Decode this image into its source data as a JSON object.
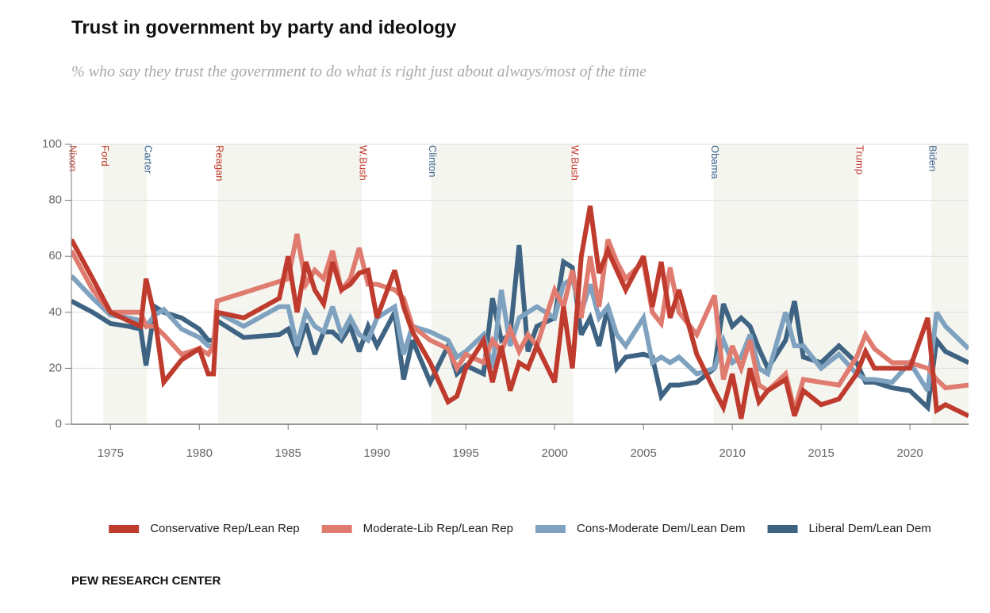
{
  "chart_data": {
    "type": "line",
    "title": "Trust in government by party and ideology",
    "subtitle": "% who say they trust the government to do what is right just about always/most of the time",
    "source": "PEW RESEARCH CENTER",
    "xlim": [
      1972.8,
      2023.3
    ],
    "xticks": [
      1975,
      1980,
      1985,
      1990,
      1995,
      2000,
      2005,
      2010,
      2015,
      2020
    ],
    "ylim": [
      0,
      100
    ],
    "yticks": [
      0,
      20,
      40,
      60,
      80,
      100
    ],
    "grid": true,
    "legend": "bottom",
    "periods": [
      {
        "label": "Nixon",
        "start": 1972.8,
        "color": "#c0392b",
        "shaded": false
      },
      {
        "label": "Ford",
        "start": 1974.6,
        "color": "#c0392b",
        "shaded": true
      },
      {
        "label": "Carter",
        "start": 1977.05,
        "color": "#3d6590",
        "shaded": false
      },
      {
        "label": "Reagan",
        "start": 1981.05,
        "color": "#c0392b",
        "shaded": true
      },
      {
        "label": "W.Bush",
        "start": 1989.15,
        "color": "#c0392b",
        "shaded": false
      },
      {
        "label": "Clinton",
        "start": 1993.05,
        "color": "#3d6590",
        "shaded": true
      },
      {
        "label": "W.Bush",
        "start": 2001.05,
        "color": "#c0392b",
        "shaded": false
      },
      {
        "label": "Obama",
        "start": 2008.95,
        "color": "#3d6590",
        "shaded": true
      },
      {
        "label": "Trump",
        "start": 2017.1,
        "color": "#c0392b",
        "shaded": false
      },
      {
        "label": "Biden",
        "start": 2021.2,
        "color": "#3d6590",
        "shaded": true
      }
    ],
    "x": [
      1972.8,
      1974,
      1975,
      1976,
      1976.7,
      1977,
      1977.5,
      1978,
      1979,
      1980,
      1980.5,
      1980.8,
      1981,
      1982.5,
      1984.5,
      1985,
      1985.5,
      1986,
      1986.5,
      1987,
      1987.5,
      1988,
      1988.5,
      1989,
      1989.5,
      1990,
      1991,
      1991.5,
      1992,
      1993,
      1994,
      1994.5,
      1995,
      1996,
      1996.5,
      1997,
      1997.5,
      1998,
      1998.5,
      1999,
      2000,
      2000.5,
      2001,
      2001.5,
      2002,
      2002.5,
      2003,
      2003.5,
      2004,
      2005,
      2005.5,
      2006,
      2006.5,
      2007,
      2008,
      2009,
      2009.5,
      2010,
      2010.5,
      2011,
      2011.5,
      2012,
      2013,
      2013.5,
      2014,
      2015,
      2016,
      2017,
      2017.5,
      2018,
      2019,
      2020,
      2021,
      2021.5,
      2022,
      2023.3
    ],
    "series": [
      {
        "name": "Conservative Rep/Lean Rep",
        "color": "#bf3b2d",
        "values": [
          66,
          52,
          40,
          37,
          35,
          52,
          38,
          15,
          23,
          27,
          18,
          18,
          40,
          38,
          45,
          60,
          40,
          58,
          48,
          43,
          58,
          48,
          50,
          54,
          55,
          38,
          55,
          42,
          33,
          22,
          8,
          10,
          20,
          30,
          15,
          28,
          12,
          22,
          20,
          28,
          15,
          42,
          20,
          60,
          78,
          54,
          62,
          55,
          48,
          60,
          42,
          58,
          38,
          48,
          25,
          12,
          6,
          18,
          2,
          20,
          8,
          12,
          16,
          3,
          12,
          7,
          9,
          18,
          26,
          20,
          20,
          20,
          38,
          5,
          7,
          3
        ]
      },
      {
        "name": "Moderate-Lib Rep/Lean Rep",
        "color": "#e07b70",
        "values": [
          62,
          48,
          40,
          40,
          40,
          35,
          35,
          32,
          25,
          27,
          25,
          28,
          44,
          47,
          51,
          52,
          68,
          50,
          55,
          52,
          62,
          48,
          52,
          63,
          50,
          50,
          48,
          45,
          35,
          30,
          27,
          20,
          25,
          22,
          30,
          26,
          34,
          26,
          32,
          28,
          48,
          42,
          55,
          38,
          60,
          42,
          66,
          58,
          52,
          58,
          40,
          36,
          56,
          40,
          32,
          46,
          16,
          28,
          20,
          30,
          14,
          12,
          18,
          5,
          16,
          15,
          14,
          24,
          32,
          27,
          22,
          22,
          20,
          16,
          13,
          14
        ]
      },
      {
        "name": "Cons-Moderate Dem/Lean Dem",
        "color": "#7ea2bf",
        "values": [
          53,
          45,
          39,
          38,
          37,
          35,
          39,
          41,
          34,
          31,
          28,
          28,
          40,
          35,
          42,
          42,
          28,
          40,
          35,
          33,
          42,
          32,
          38,
          32,
          30,
          38,
          42,
          25,
          35,
          33,
          30,
          24,
          26,
          32,
          20,
          48,
          28,
          38,
          40,
          42,
          38,
          50,
          52,
          40,
          50,
          38,
          42,
          32,
          28,
          38,
          22,
          24,
          22,
          24,
          18,
          20,
          30,
          22,
          24,
          32,
          20,
          18,
          40,
          28,
          28,
          20,
          25,
          18,
          16,
          16,
          15,
          22,
          12,
          40,
          35,
          27
        ]
      },
      {
        "name": "Liberal Dem/Lean Dem",
        "color": "#3f6483",
        "values": [
          44,
          40,
          36,
          35,
          34,
          21,
          42,
          40,
          38,
          34,
          30,
          30,
          37,
          31,
          32,
          34,
          26,
          36,
          25,
          33,
          33,
          30,
          35,
          26,
          35,
          28,
          40,
          16,
          30,
          15,
          28,
          18,
          21,
          18,
          45,
          30,
          32,
          64,
          26,
          35,
          38,
          58,
          56,
          32,
          38,
          28,
          42,
          20,
          24,
          25,
          24,
          10,
          14,
          14,
          15,
          20,
          43,
          35,
          38,
          35,
          27,
          20,
          30,
          44,
          24,
          22,
          28,
          22,
          15,
          15,
          13,
          12,
          6,
          30,
          26,
          22
        ]
      }
    ]
  }
}
